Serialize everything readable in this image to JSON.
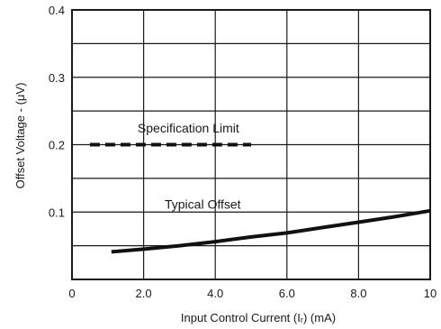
{
  "chart_data": {
    "type": "line",
    "xlabel": "Input Control Current (Iᵣ) (mA)",
    "ylabel": "Offset Voltage - (μV)",
    "xlim": [
      0,
      10
    ],
    "ylim": [
      0,
      0.4
    ],
    "x_ticks": [
      0,
      2.0,
      4.0,
      6.0,
      8.0,
      10
    ],
    "x_tick_labels": [
      "0",
      "2.0",
      "4.0",
      "6.0",
      "8.0",
      "10"
    ],
    "y_ticks": [
      0.1,
      0.2,
      0.3,
      0.4
    ],
    "y_tick_labels": [
      "0.1",
      "0.2",
      "0.3",
      "0.4"
    ],
    "grid": true,
    "grid_x_step": 2,
    "grid_y_step": 0.05,
    "series": [
      {
        "name": "Specification Limit",
        "style": "dashed",
        "x": [
          0.5,
          5.0
        ],
        "y": [
          0.2,
          0.2
        ]
      },
      {
        "name": "Typical Offset",
        "style": "solid",
        "x": [
          1.1,
          2.0,
          3.0,
          4.0,
          5.0,
          6.0,
          7.0,
          8.0,
          9.0,
          10.0
        ],
        "y": [
          0.041,
          0.045,
          0.05,
          0.056,
          0.063,
          0.069,
          0.077,
          0.085,
          0.093,
          0.102
        ]
      }
    ],
    "annotations": [
      {
        "text": "Specification Limit",
        "x": 3.25,
        "y": 0.225
      },
      {
        "text": "Typical Offset",
        "x": 3.65,
        "y": 0.112
      }
    ]
  }
}
